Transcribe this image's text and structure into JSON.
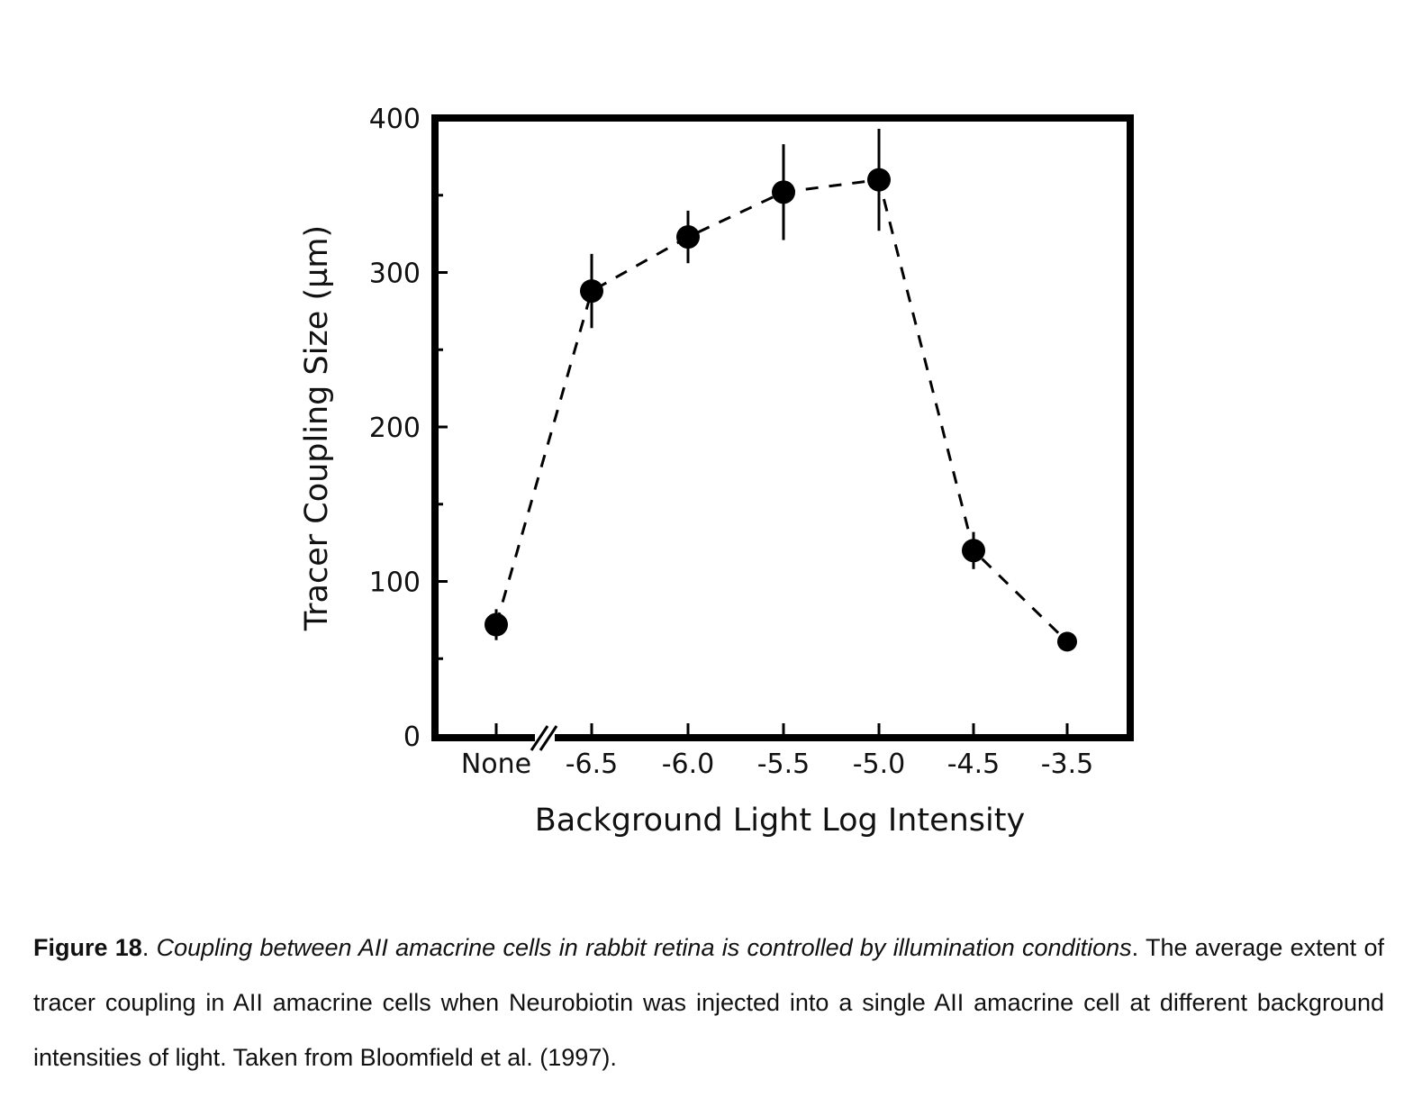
{
  "chart_data": {
    "type": "line",
    "xlabel": "Background Light Log Intensity",
    "ylabel": "Tracer Coupling Size (µm)",
    "categories": [
      "None",
      "-6.5",
      "-6.0",
      "-5.5",
      "-5.0",
      "-4.5",
      "-3.5"
    ],
    "ylim": [
      0,
      400
    ],
    "yticks": [
      "0",
      "100",
      "200",
      "300",
      "400"
    ],
    "axis_break_after": "None",
    "series": [
      {
        "values": [
          72,
          288,
          323,
          352,
          360,
          120,
          61
        ],
        "error": [
          10,
          24,
          17,
          31,
          33,
          12,
          4
        ],
        "line_style": "dashed",
        "marker": "filled-circle",
        "color": "#000000"
      }
    ],
    "grid": false
  },
  "caption": {
    "label": "Figure 18",
    "title": "Coupling between AII amacrine cells in rabbit retina is controlled by illumination conditions",
    "text": "The average extent of tracer coupling in AII amacrine cells when Neurobiotin was injected into a single AII amacrine cell at different background intensities of light. Taken from Bloomfield et al. (1997)."
  }
}
